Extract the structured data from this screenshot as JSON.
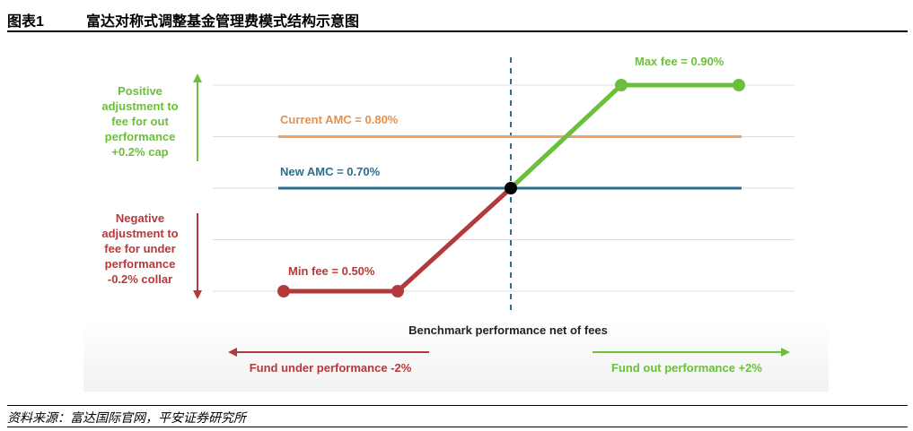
{
  "header": {
    "figure_number": "图表1",
    "title": "富达对称式调整基金管理费模式结构示意图"
  },
  "footer": {
    "source": "资料来源：富达国际官网，平安证券研究所"
  },
  "chart_data": {
    "type": "line",
    "title": "",
    "xlabel": "Benchmark performance net of fees",
    "ylabel": "",
    "x_categories": [
      "Fund under performance",
      "",
      "",
      "",
      "Benchmark",
      "",
      "",
      "Fund out performance"
    ],
    "ylim": [
      0.45,
      0.95
    ],
    "gridlines": [
      0.5,
      0.6,
      0.7,
      0.8,
      0.9
    ],
    "reference_lines": [
      {
        "name": "Current AMC = 0.80%",
        "value": 0.8,
        "color": "#f0a060"
      },
      {
        "name": "New AMC = 0.70%",
        "value": 0.7,
        "color": "#2a6f8f"
      }
    ],
    "fee_curve": {
      "under": {
        "color": "#b33a3a",
        "points": [
          [
            0,
            0.5
          ],
          [
            1,
            0.5
          ],
          [
            2,
            0.7
          ]
        ]
      },
      "out": {
        "color": "#6cbf3a",
        "points": [
          [
            2,
            0.7
          ],
          [
            3,
            0.9
          ],
          [
            4,
            0.9
          ]
        ]
      },
      "center_point": [
        2,
        0.7
      ]
    },
    "annotations": {
      "max_fee": "Max fee = 0.90%",
      "min_fee": "Min fee = 0.50%",
      "positive_lines": [
        "Positive",
        "adjustment to",
        "fee for out",
        "performance",
        "+0.2% cap"
      ],
      "negative_lines": [
        "Negative",
        "adjustment to",
        "fee for under",
        "performance",
        "-0.2% collar"
      ],
      "under_arrow": "Fund under performance -2%",
      "out_arrow": "Fund out performance +2%"
    },
    "colors": {
      "positive": "#6cbf3a",
      "negative": "#b33a3a",
      "grid": "#dddddd",
      "dash": "#2a6f8f"
    }
  }
}
